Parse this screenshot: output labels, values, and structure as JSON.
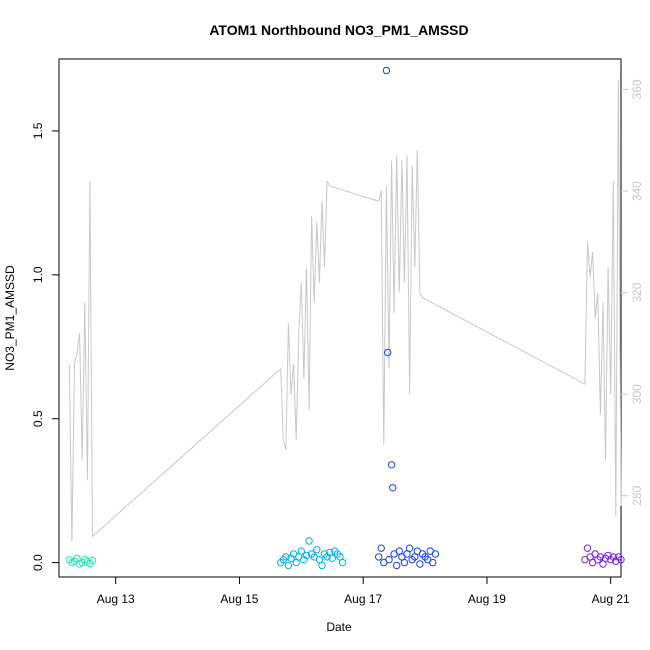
{
  "chart_data": {
    "type": "scatter",
    "title": "ATOM1 Northbound NO3_PM1_AMSSD",
    "xlabel": "Date",
    "ylabel": "NO3_PM1_AMSSD",
    "y2label": "",
    "xlim": [
      "2024-08-12T02:00",
      "2024-08-21T04:00"
    ],
    "ylim": [
      -0.05,
      1.75
    ],
    "y2lim": [
      264,
      366
    ],
    "x_ticks": [
      {
        "date": "2024-08-13",
        "label": "Aug 13"
      },
      {
        "date": "2024-08-15",
        "label": "Aug 15"
      },
      {
        "date": "2024-08-17",
        "label": "Aug 17"
      },
      {
        "date": "2024-08-19",
        "label": "Aug 19"
      },
      {
        "date": "2024-08-21",
        "label": "Aug 21"
      }
    ],
    "y_ticks": [
      0.0,
      0.5,
      1.0,
      1.5
    ],
    "y_tick_labels": [
      "0.0",
      "0.5",
      "1.0",
      "1.5"
    ],
    "y2_ticks": [
      280,
      300,
      320,
      340,
      360
    ],
    "y2_tick_labels": [
      "280",
      "300",
      "320",
      "340",
      "360"
    ],
    "grid": false,
    "legend": "none",
    "colors": {
      "segment_1": "#1de9b6",
      "segment_2": "#00b0f0",
      "segment_3": "#1a3ff0",
      "segment_4": "#7c1fe8",
      "secondary_line": "#c8c8c8",
      "axis": "#000000"
    },
    "series": [
      {
        "color": "#1de9b6",
        "points": [
          [
            "2024-08-12T06:00",
            0.01
          ],
          [
            "2024-08-12T07:00",
            0.0
          ],
          [
            "2024-08-12T08:00",
            0.005
          ],
          [
            "2024-08-12T09:00",
            0.015
          ],
          [
            "2024-08-12T10:00",
            -0.005
          ],
          [
            "2024-08-12T11:00",
            0.0
          ],
          [
            "2024-08-12T12:00",
            0.01
          ],
          [
            "2024-08-12T13:00",
            0.005
          ],
          [
            "2024-08-12T14:00",
            -0.003
          ],
          [
            "2024-08-12T15:00",
            0.008
          ]
        ]
      },
      {
        "color": "#00b0f0",
        "points": [
          [
            "2024-08-15T16:00",
            0.0
          ],
          [
            "2024-08-15T17:00",
            0.01
          ],
          [
            "2024-08-15T18:00",
            0.02
          ],
          [
            "2024-08-15T19:00",
            -0.01
          ],
          [
            "2024-08-15T20:00",
            0.015
          ],
          [
            "2024-08-15T21:00",
            0.03
          ],
          [
            "2024-08-15T22:00",
            0.0
          ],
          [
            "2024-08-15T23:00",
            0.02
          ],
          [
            "2024-08-16T00:00",
            0.04
          ],
          [
            "2024-08-16T01:00",
            0.01
          ],
          [
            "2024-08-16T02:00",
            0.025
          ],
          [
            "2024-08-16T03:00",
            0.075
          ],
          [
            "2024-08-16T04:00",
            0.03
          ],
          [
            "2024-08-16T05:00",
            0.02
          ],
          [
            "2024-08-16T06:00",
            0.045
          ],
          [
            "2024-08-16T07:00",
            0.01
          ],
          [
            "2024-08-16T08:00",
            -0.01
          ],
          [
            "2024-08-16T09:00",
            0.03
          ],
          [
            "2024-08-16T10:00",
            0.02
          ],
          [
            "2024-08-16T11:00",
            0.035
          ],
          [
            "2024-08-16T12:00",
            0.015
          ],
          [
            "2024-08-16T13:00",
            0.04
          ],
          [
            "2024-08-16T14:00",
            0.03
          ],
          [
            "2024-08-16T15:00",
            0.02
          ],
          [
            "2024-08-16T16:00",
            0.0
          ]
        ]
      },
      {
        "color": "#1a3ff0",
        "points": [
          [
            "2024-08-17T06:00",
            0.02
          ],
          [
            "2024-08-17T07:00",
            0.05
          ],
          [
            "2024-08-17T08:00",
            0.0
          ],
          [
            "2024-08-17T09:00",
            1.71
          ],
          [
            "2024-08-17T09:30",
            0.73
          ],
          [
            "2024-08-17T10:00",
            0.01
          ],
          [
            "2024-08-17T11:00",
            0.34
          ],
          [
            "2024-08-17T11:30",
            0.26
          ],
          [
            "2024-08-17T12:00",
            0.03
          ],
          [
            "2024-08-17T13:00",
            -0.01
          ],
          [
            "2024-08-17T14:00",
            0.04
          ],
          [
            "2024-08-17T15:00",
            0.02
          ],
          [
            "2024-08-17T16:00",
            0.0
          ],
          [
            "2024-08-17T17:00",
            0.03
          ],
          [
            "2024-08-17T18:00",
            0.05
          ],
          [
            "2024-08-17T19:00",
            0.01
          ],
          [
            "2024-08-17T20:00",
            0.02
          ],
          [
            "2024-08-17T21:00",
            0.04
          ],
          [
            "2024-08-17T22:00",
            -0.005
          ],
          [
            "2024-08-17T23:00",
            0.03
          ],
          [
            "2024-08-18T00:00",
            0.02
          ],
          [
            "2024-08-18T01:00",
            0.01
          ],
          [
            "2024-08-18T02:00",
            0.04
          ],
          [
            "2024-08-18T03:00",
            0.0
          ],
          [
            "2024-08-18T04:00",
            0.03
          ]
        ]
      },
      {
        "color": "#7c1fe8",
        "points": [
          [
            "2024-08-20T14:00",
            0.01
          ],
          [
            "2024-08-20T15:00",
            0.05
          ],
          [
            "2024-08-20T16:00",
            0.02
          ],
          [
            "2024-08-20T17:00",
            0.0
          ],
          [
            "2024-08-20T18:00",
            0.03
          ],
          [
            "2024-08-20T19:00",
            0.01
          ],
          [
            "2024-08-20T20:00",
            0.02
          ],
          [
            "2024-08-20T21:00",
            -0.005
          ],
          [
            "2024-08-20T22:00",
            0.015
          ],
          [
            "2024-08-20T23:00",
            0.025
          ],
          [
            "2024-08-21T00:00",
            0.01
          ],
          [
            "2024-08-21T01:00",
            0.02
          ],
          [
            "2024-08-21T02:00",
            0.005
          ],
          [
            "2024-08-21T03:00",
            0.02
          ],
          [
            "2024-08-21T04:00",
            0.01
          ]
        ]
      }
    ],
    "secondary_series": {
      "color": "#c8c8c8",
      "points": [
        [
          "2024-08-12T06:00",
          306
        ],
        [
          "2024-08-12T07:00",
          271
        ],
        [
          "2024-08-12T08:00",
          306
        ],
        [
          "2024-08-12T09:00",
          308
        ],
        [
          "2024-08-12T10:00",
          312
        ],
        [
          "2024-08-12T11:00",
          287
        ],
        [
          "2024-08-12T12:00",
          318
        ],
        [
          "2024-08-12T13:00",
          283
        ],
        [
          "2024-08-12T14:00",
          342
        ],
        [
          "2024-08-12T15:00",
          272
        ],
        [
          "2024-08-15T16:00",
          305
        ],
        [
          "2024-08-15T17:00",
          291
        ],
        [
          "2024-08-15T18:00",
          289
        ],
        [
          "2024-08-15T19:00",
          314
        ],
        [
          "2024-08-15T20:00",
          300
        ],
        [
          "2024-08-15T21:00",
          306
        ],
        [
          "2024-08-15T22:00",
          291
        ],
        [
          "2024-08-15T23:00",
          312
        ],
        [
          "2024-08-16T00:00",
          322
        ],
        [
          "2024-08-16T01:00",
          303
        ],
        [
          "2024-08-16T02:00",
          325
        ],
        [
          "2024-08-16T03:00",
          297
        ],
        [
          "2024-08-16T04:00",
          335
        ],
        [
          "2024-08-16T05:00",
          318
        ],
        [
          "2024-08-16T06:00",
          334
        ],
        [
          "2024-08-16T07:00",
          322
        ],
        [
          "2024-08-16T08:00",
          338
        ],
        [
          "2024-08-16T09:00",
          325
        ],
        [
          "2024-08-16T10:00",
          342
        ],
        [
          "2024-08-16T11:00",
          341
        ],
        [
          "2024-08-17T06:00",
          338
        ],
        [
          "2024-08-17T07:00",
          340
        ],
        [
          "2024-08-17T08:00",
          290
        ],
        [
          "2024-08-17T09:00",
          341
        ],
        [
          "2024-08-17T10:00",
          305
        ],
        [
          "2024-08-17T11:00",
          346
        ],
        [
          "2024-08-17T12:00",
          316
        ],
        [
          "2024-08-17T13:00",
          347
        ],
        [
          "2024-08-17T14:00",
          320
        ],
        [
          "2024-08-17T15:00",
          346
        ],
        [
          "2024-08-17T16:00",
          322
        ],
        [
          "2024-08-17T17:00",
          347
        ],
        [
          "2024-08-17T18:00",
          300
        ],
        [
          "2024-08-17T19:00",
          345
        ],
        [
          "2024-08-17T20:00",
          325
        ],
        [
          "2024-08-17T21:00",
          348
        ],
        [
          "2024-08-17T22:00",
          320
        ],
        [
          "2024-08-17T23:00",
          319
        ],
        [
          "2024-08-20T14:00",
          302
        ],
        [
          "2024-08-20T15:00",
          330
        ],
        [
          "2024-08-20T16:00",
          323
        ],
        [
          "2024-08-20T17:00",
          328
        ],
        [
          "2024-08-20T18:00",
          315
        ],
        [
          "2024-08-20T19:00",
          320
        ],
        [
          "2024-08-20T20:00",
          296
        ],
        [
          "2024-08-20T21:00",
          318
        ],
        [
          "2024-08-20T22:00",
          287
        ],
        [
          "2024-08-20T23:00",
          325
        ],
        [
          "2024-08-21T00:00",
          300
        ],
        [
          "2024-08-21T01:00",
          342
        ],
        [
          "2024-08-21T02:00",
          276
        ],
        [
          "2024-08-21T03:00",
          362
        ],
        [
          "2024-08-21T04:00",
          278
        ]
      ]
    }
  }
}
